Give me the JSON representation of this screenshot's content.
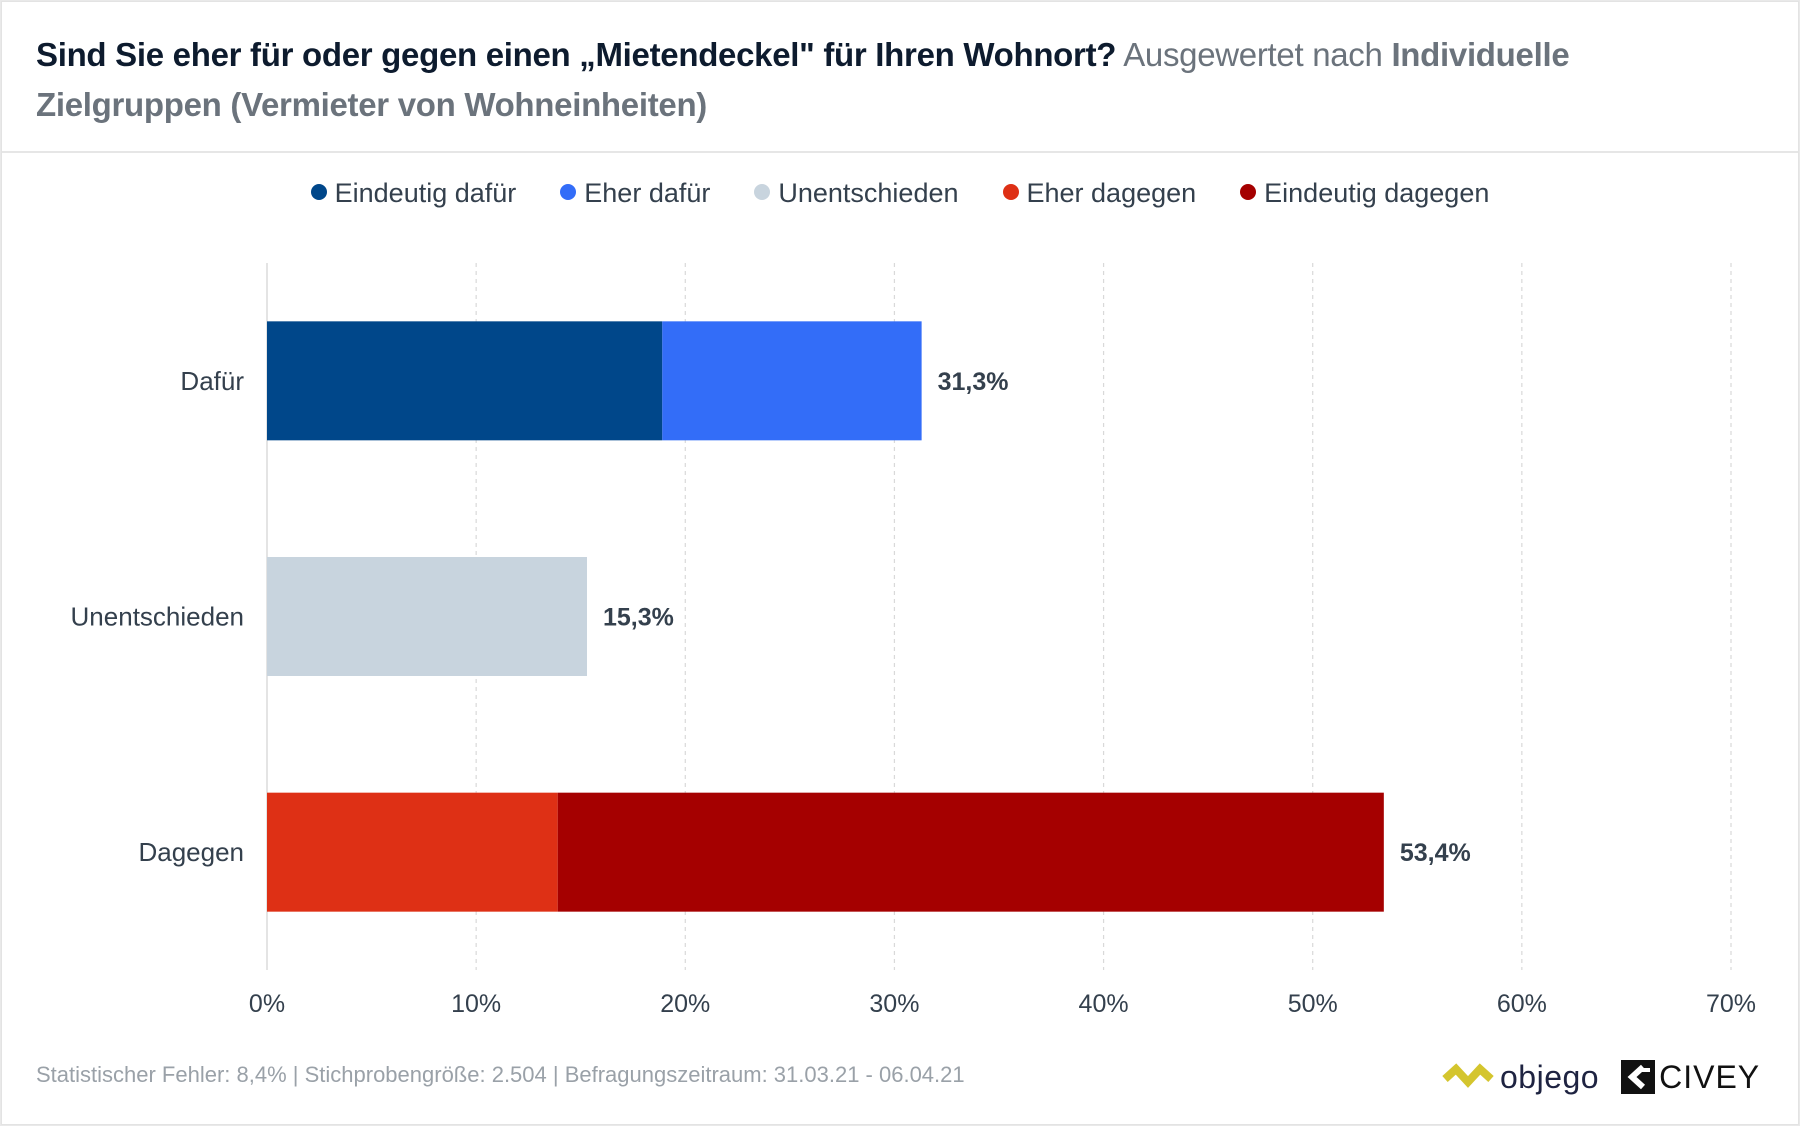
{
  "header": {
    "question": "Sind Sie eher für oder gegen einen „Mietendeckel\" für Ihren Wohnort?",
    "subtitle_prefix": "Ausgewertet nach",
    "subtitle_group": "Individuelle Zielgruppen (Vermieter von Wohneinheiten)"
  },
  "footer": {
    "text": "Statistischer Fehler: 8,4% | Stichprobengröße: 2.504 | Befragungszeitraum: 31.03.21 - 06.04.21",
    "logo_objego": "objego",
    "logo_civey": "CIVEY",
    "objego_color": "#d4c52e"
  },
  "chart_data": {
    "type": "bar",
    "orientation": "horizontal",
    "stacked": true,
    "title": "Sind Sie eher für oder gegen einen „Mietendeckel\" für Ihren Wohnort?",
    "categories": [
      "Dafür",
      "Unentschieden",
      "Dagegen"
    ],
    "series": [
      {
        "name": "Eindeutig dafür",
        "color": "#00478a",
        "values": [
          18.9,
          0,
          0
        ]
      },
      {
        "name": "Eher dafür",
        "color": "#336df8",
        "values": [
          12.4,
          0,
          0
        ]
      },
      {
        "name": "Unentschieden",
        "color": "#c8d4de",
        "values": [
          0,
          15.3,
          0
        ]
      },
      {
        "name": "Eher dagegen",
        "color": "#de3015",
        "values": [
          0,
          0,
          13.9
        ]
      },
      {
        "name": "Eindeutig dagegen",
        "color": "#a50000",
        "values": [
          0,
          0,
          39.5
        ]
      }
    ],
    "totals": [
      31.3,
      15.3,
      53.4
    ],
    "total_labels": [
      "31,3%",
      "15,3%",
      "53,4%"
    ],
    "xlim": [
      0,
      70
    ],
    "xticks": [
      0,
      10,
      20,
      30,
      40,
      50,
      60,
      70
    ],
    "xtick_labels": [
      "0%",
      "10%",
      "20%",
      "30%",
      "40%",
      "50%",
      "60%",
      "70%"
    ],
    "xlabel": "",
    "ylabel": "",
    "grid": true,
    "legend_position": "top-center"
  }
}
